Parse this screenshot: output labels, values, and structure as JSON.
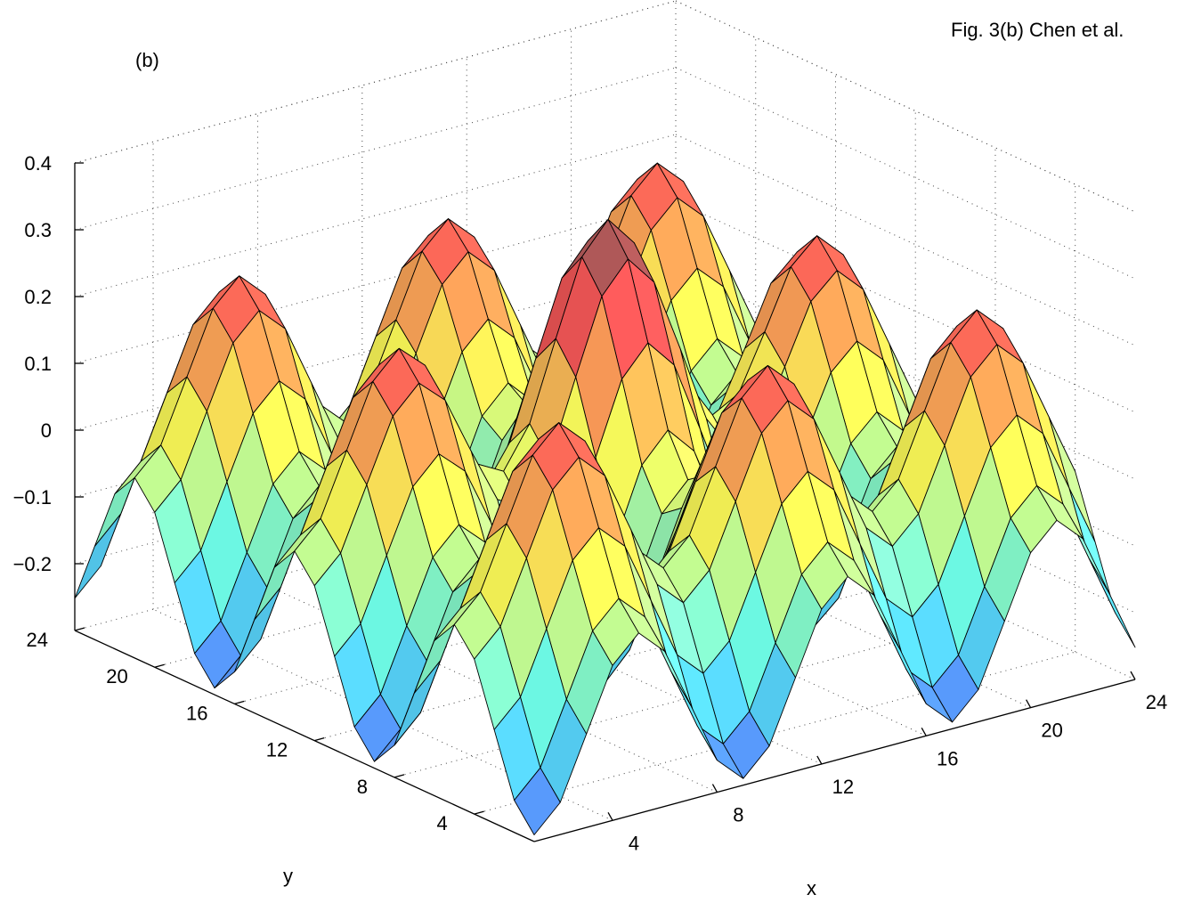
{
  "caption": "Fig. 3(b) Chen et al.",
  "panel_label": "(b)",
  "chart_data": {
    "type": "surface",
    "xlabel": "x",
    "ylabel": "y",
    "zlabel": "",
    "x_range": [
      1,
      24
    ],
    "y_range": [
      1,
      24
    ],
    "zlim": [
      -0.3,
      0.4
    ],
    "x_ticks": [
      4,
      8,
      12,
      16,
      20,
      24
    ],
    "y_ticks": [
      4,
      8,
      12,
      16,
      20,
      24
    ],
    "z_ticks": [
      -0.2,
      -0.1,
      0,
      0.1,
      0.2,
      0.3,
      0.4
    ],
    "z_tick_labels": [
      "−0.2",
      "−0.1",
      "0",
      "0.1",
      "0.2",
      "0.3",
      "0.4"
    ],
    "grid": true,
    "colormap": "jet",
    "color_limits": [
      -0.27,
      0.3
    ],
    "model": {
      "description": "surface of approximately periodic bumps with a maximum near the centre",
      "z_max": 0.29,
      "z_min": -0.27,
      "peak_location": [
        13,
        13
      ]
    }
  }
}
